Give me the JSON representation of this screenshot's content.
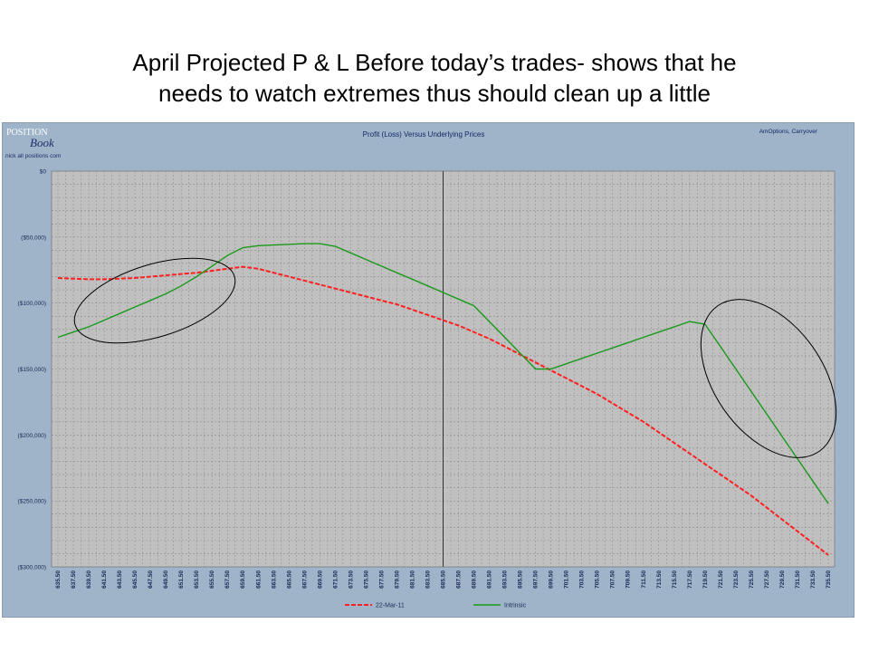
{
  "slide": {
    "title_line1": "April Projected P & L Before today’s trades- shows that he",
    "title_line2": "needs to watch extremes thus should clean up a little"
  },
  "logo": {
    "line1": "POSITION",
    "line2": "Book",
    "url": "nick all positions com"
  },
  "chart_header": {
    "top_right": "AmOptions, Carryover"
  },
  "colors": {
    "panel_bg": "#9fb3c9",
    "plot_bg": "#c0c0c0",
    "series_red": "#ff2020",
    "series_green": "#1a9a1a",
    "ellipse": "#000000"
  },
  "chart_data": {
    "type": "line",
    "title": "Profit (Loss) Versus Underlying Prices",
    "xlabel": "",
    "ylabel": "",
    "x": [
      "635.50",
      "637.50",
      "639.50",
      "641.50",
      "643.50",
      "645.50",
      "647.50",
      "649.50",
      "651.50",
      "653.50",
      "655.50",
      "657.50",
      "659.50",
      "661.50",
      "663.50",
      "665.50",
      "667.50",
      "669.50",
      "671.50",
      "673.50",
      "675.50",
      "677.50",
      "679.50",
      "681.50",
      "683.50",
      "685.50",
      "687.50",
      "689.50",
      "691.50",
      "693.50",
      "695.50",
      "697.50",
      "699.50",
      "701.50",
      "703.50",
      "705.50",
      "707.50",
      "709.50",
      "711.50",
      "713.50",
      "715.50",
      "717.50",
      "719.50",
      "721.50",
      "723.50",
      "725.50",
      "727.50",
      "729.50",
      "731.50",
      "733.50",
      "735.50"
    ],
    "ylim": [
      -300000,
      0
    ],
    "yticks": [
      0,
      -50000,
      -100000,
      -150000,
      -200000,
      -250000,
      -300000
    ],
    "ytick_labels": [
      "$0",
      "($50,000)",
      "($100,000)",
      "($150,000)",
      "($200,000)",
      "($250,000)",
      "($300,000)"
    ],
    "current_price_marker": "685.50",
    "grid": true,
    "legend_position": "bottom",
    "series": [
      {
        "name": "22-Mar-11",
        "color": "#ff2020",
        "dashed": true,
        "values": [
          -81000,
          -81500,
          -82000,
          -82000,
          -81500,
          -81000,
          -80000,
          -79000,
          -78000,
          -77000,
          -75500,
          -74000,
          -72500,
          -74000,
          -77000,
          -80000,
          -83000,
          -86000,
          -89000,
          -92000,
          -95000,
          -98000,
          -101000,
          -105000,
          -109000,
          -113000,
          -117000,
          -122000,
          -127000,
          -133000,
          -139000,
          -145000,
          -151000,
          -157000,
          -163000,
          -169000,
          -176000,
          -183000,
          -190000,
          -198000,
          -206000,
          -214000,
          -222000,
          -230000,
          -238000,
          -246000,
          -255000,
          -264000,
          -273000,
          -282000,
          -291000
        ]
      },
      {
        "name": "Intrinsic",
        "color": "#1a9a1a",
        "dashed": false,
        "values": [
          -126000,
          -122000,
          -118000,
          -113000,
          -108000,
          -103000,
          -98000,
          -93000,
          -87000,
          -80000,
          -72000,
          -64000,
          -58000,
          -56500,
          -56000,
          -55500,
          -55000,
          -55000,
          -57000,
          -62000,
          -67000,
          -72000,
          -77000,
          -82000,
          -87000,
          -92000,
          -97000,
          -102000,
          -114000,
          -126000,
          -138000,
          -150000,
          -150000,
          -146000,
          -142000,
          -138000,
          -134000,
          -130000,
          -126000,
          -122000,
          -118000,
          -114000,
          -116000,
          -133000,
          -150000,
          -167000,
          -184000,
          -201000,
          -218000,
          -235000,
          -252000
        ]
      }
    ],
    "annotations": [
      "ellipse-left",
      "ellipse-right"
    ]
  }
}
